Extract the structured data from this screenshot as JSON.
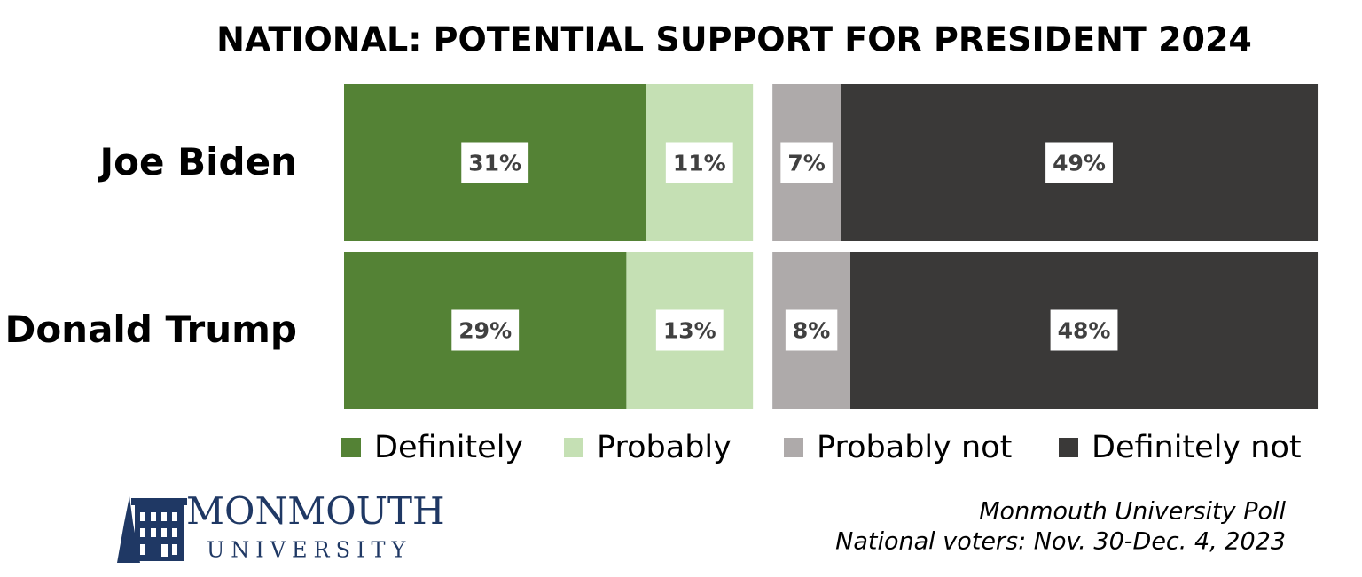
{
  "chart_data": {
    "type": "bar",
    "orientation": "horizontal",
    "stacked": true,
    "title": "NATIONAL: POTENTIAL SUPPORT FOR PRESIDENT 2024",
    "categories": [
      "Joe Biden",
      "Donald Trump"
    ],
    "series": [
      {
        "name": "Definitely",
        "color": "#548235",
        "values": [
          31,
          29
        ],
        "value_labels": [
          "31%",
          "29%"
        ]
      },
      {
        "name": "Probably",
        "color": "#c5e0b4",
        "values": [
          11,
          13
        ],
        "value_labels": [
          "11%",
          "13%"
        ]
      },
      {
        "name": "Probably not",
        "color": "#aeaaaa",
        "values": [
          7,
          8
        ],
        "value_labels": [
          "7%",
          "8%"
        ]
      },
      {
        "name": "Definitely not",
        "color": "#3a3938",
        "values": [
          49,
          48
        ],
        "value_labels": [
          "49%",
          "48%"
        ]
      }
    ],
    "legend": "bottom",
    "source": [
      "Monmouth University Poll",
      "National voters: Nov. 30-Dec. 4, 2023"
    ]
  },
  "logo": {
    "name": "MONMOUTH",
    "subname": "UNIVERSITY"
  }
}
